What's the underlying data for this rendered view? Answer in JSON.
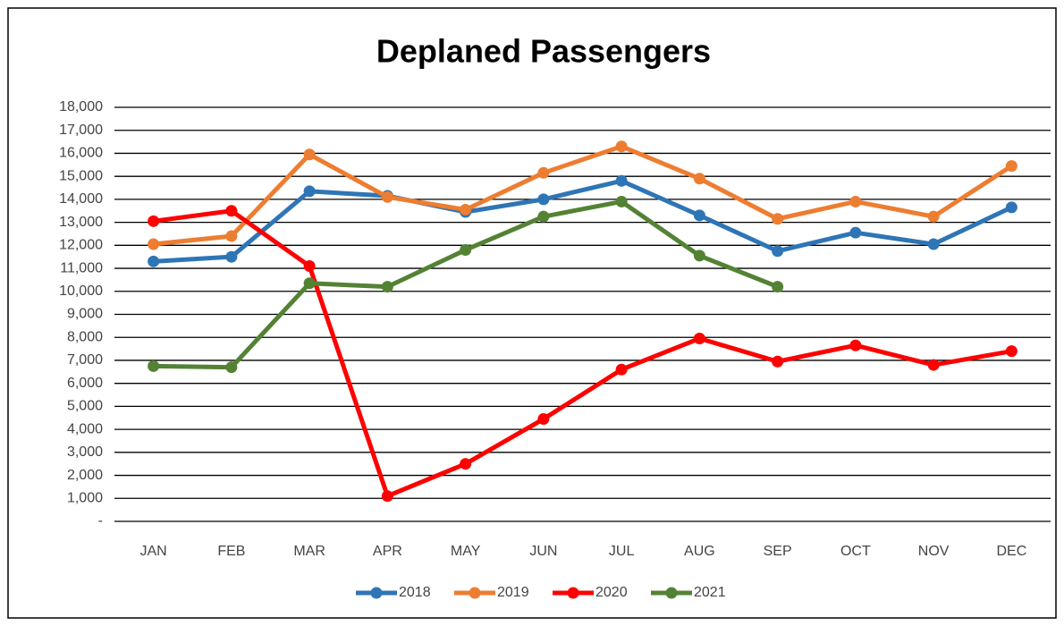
{
  "chart_data": {
    "type": "line",
    "title": "Deplaned Passengers",
    "categories": [
      "JAN",
      "FEB",
      "MAR",
      "APR",
      "MAY",
      "JUN",
      "JUL",
      "AUG",
      "SEP",
      "OCT",
      "NOV",
      "DEC"
    ],
    "series": [
      {
        "name": "2018",
        "color": "#2e75b6",
        "values": [
          11300,
          11500,
          14350,
          14150,
          13450,
          14000,
          14800,
          13300,
          11750,
          12550,
          12050,
          13650
        ]
      },
      {
        "name": "2019",
        "color": "#ed7d31",
        "values": [
          12050,
          12400,
          15950,
          14100,
          13550,
          15150,
          16300,
          14900,
          13150,
          13900,
          13250,
          15450
        ]
      },
      {
        "name": "2020",
        "color": "#ff0000",
        "values": [
          13050,
          13500,
          11100,
          1100,
          2500,
          4450,
          6600,
          7950,
          6950,
          7650,
          6800,
          7400
        ]
      },
      {
        "name": "2021",
        "color": "#548235",
        "values": [
          6750,
          6700,
          10350,
          10200,
          11800,
          13250,
          13900,
          11550,
          10200,
          null,
          null,
          null
        ]
      }
    ],
    "ylim": [
      0,
      18000
    ],
    "yticks": [
      {
        "value": 0,
        "label": "-"
      },
      {
        "value": 1000,
        "label": "1,000"
      },
      {
        "value": 2000,
        "label": "2,000"
      },
      {
        "value": 3000,
        "label": "3,000"
      },
      {
        "value": 4000,
        "label": "4,000"
      },
      {
        "value": 5000,
        "label": "5,000"
      },
      {
        "value": 6000,
        "label": "6,000"
      },
      {
        "value": 7000,
        "label": "7,000"
      },
      {
        "value": 8000,
        "label": "8,000"
      },
      {
        "value": 9000,
        "label": "9,000"
      },
      {
        "value": 10000,
        "label": "10,000"
      },
      {
        "value": 11000,
        "label": "11,000"
      },
      {
        "value": 12000,
        "label": "12,000"
      },
      {
        "value": 13000,
        "label": "13,000"
      },
      {
        "value": 14000,
        "label": "14,000"
      },
      {
        "value": 15000,
        "label": "15,000"
      },
      {
        "value": 16000,
        "label": "16,000"
      },
      {
        "value": 17000,
        "label": "17,000"
      },
      {
        "value": 18000,
        "label": "18,000"
      }
    ],
    "grid": true,
    "legend": "bottom"
  }
}
